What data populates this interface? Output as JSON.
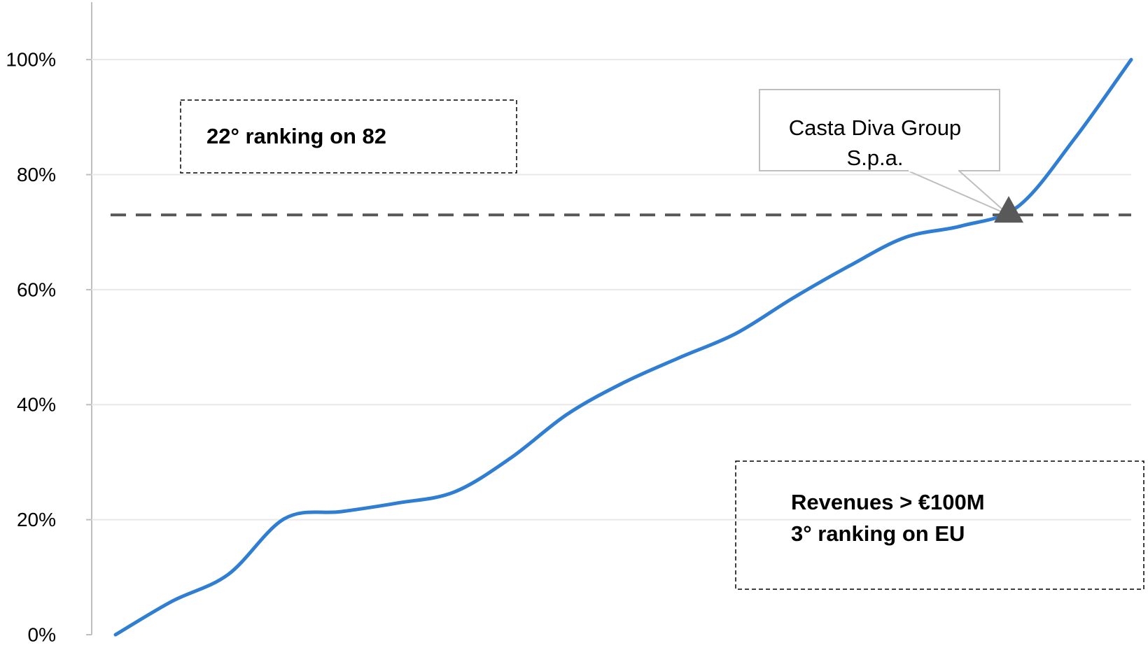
{
  "chart_data": {
    "type": "line",
    "categories": [
      null,
      null,
      null,
      null,
      null,
      null,
      null,
      null,
      null,
      null,
      null,
      null,
      null,
      null,
      null,
      null,
      null,
      null,
      null
    ],
    "series": [
      {
        "color": "#2f7ed3",
        "values": [
          0,
          5.8,
          10.5,
          20.2,
          21.4,
          22.9,
          24.8,
          30.7,
          38.3,
          43.8,
          48.2,
          52.4,
          58.5,
          64.1,
          69.1,
          71.1,
          74.5,
          86.3,
          100
        ]
      }
    ],
    "ylim": [
      0,
      110
    ],
    "yticks": [
      {
        "value": 0,
        "label": "0%"
      },
      {
        "value": 20,
        "label": "20%"
      },
      {
        "value": 40,
        "label": "40%"
      },
      {
        "value": 60,
        "label": "60%"
      },
      {
        "value": 80,
        "label": "80%"
      },
      {
        "value": 100,
        "label": "100%"
      }
    ],
    "grid": true,
    "reference_line": {
      "value": 73,
      "color": "#595959"
    },
    "callout": {
      "lines": [
        "Casta Diva Group",
        "S.p.a."
      ]
    },
    "annotations": [
      {
        "lines": [
          "22° ranking on 82"
        ]
      },
      {
        "lines": [
          "Revenues > €100M",
          "3° ranking on EU"
        ]
      }
    ]
  }
}
